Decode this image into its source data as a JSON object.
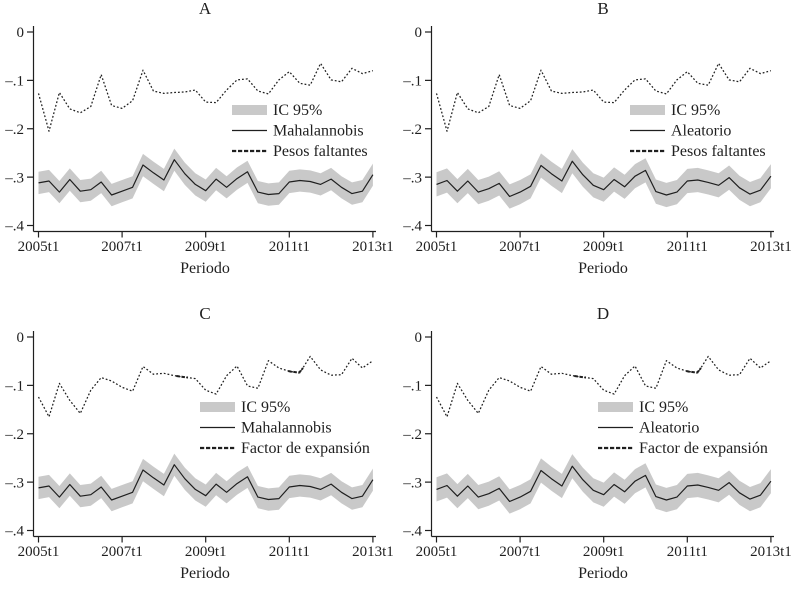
{
  "figure": {
    "description": "Cuatro paneles (A, B, C, D) de series trimestrales con banda de confianza",
    "background": "#ffffff"
  },
  "chart_data": {
    "type": "line",
    "x": {
      "label": "Periodo",
      "start": "2005t1",
      "end": "2013t1",
      "n_points": 33,
      "frequency": "quarterly",
      "tick_labels": [
        "2005t1",
        "2007t1",
        "2009t1",
        "2011t1",
        "2013t1"
      ],
      "tick_quarters": [
        0,
        8,
        16,
        24,
        32
      ]
    },
    "y": {
      "tick_labels": [
        "0",
        "–.1",
        "–.2",
        "–.3",
        "–.4"
      ],
      "tick_values": [
        0,
        -0.1,
        -0.2,
        -0.3,
        -0.4
      ],
      "ylim": [
        -0.4,
        0
      ],
      "grid": false
    },
    "series_values": {
      "mahalannobis": [
        -0.312,
        -0.308,
        -0.331,
        -0.305,
        -0.329,
        -0.326,
        -0.31,
        -0.337,
        -0.329,
        -0.321,
        -0.275,
        -0.291,
        -0.306,
        -0.264,
        -0.293,
        -0.315,
        -0.328,
        -0.304,
        -0.321,
        -0.303,
        -0.289,
        -0.331,
        -0.336,
        -0.334,
        -0.31,
        -0.307,
        -0.309,
        -0.315,
        -0.304,
        -0.321,
        -0.334,
        -0.329,
        -0.295
      ],
      "aleatorio": [
        -0.315,
        -0.307,
        -0.329,
        -0.308,
        -0.331,
        -0.324,
        -0.313,
        -0.34,
        -0.331,
        -0.319,
        -0.276,
        -0.293,
        -0.308,
        -0.267,
        -0.295,
        -0.317,
        -0.326,
        -0.305,
        -0.32,
        -0.298,
        -0.286,
        -0.33,
        -0.337,
        -0.331,
        -0.308,
        -0.306,
        -0.311,
        -0.317,
        -0.301,
        -0.322,
        -0.335,
        -0.327,
        -0.298
      ],
      "pesos_faltantes": [
        -0.127,
        -0.205,
        -0.125,
        -0.159,
        -0.167,
        -0.154,
        -0.088,
        -0.152,
        -0.158,
        -0.142,
        -0.079,
        -0.122,
        -0.127,
        -0.125,
        -0.124,
        -0.12,
        -0.145,
        -0.146,
        -0.12,
        -0.099,
        -0.097,
        -0.122,
        -0.128,
        -0.099,
        -0.082,
        -0.106,
        -0.11,
        -0.065,
        -0.099,
        -0.103,
        -0.075,
        -0.086,
        -0.08
      ],
      "factor_expansion": [
        -0.124,
        -0.165,
        -0.096,
        -0.131,
        -0.158,
        -0.11,
        -0.084,
        -0.091,
        -0.104,
        -0.112,
        -0.061,
        -0.077,
        -0.075,
        -0.08,
        -0.083,
        -0.086,
        -0.11,
        -0.118,
        -0.08,
        -0.06,
        -0.101,
        -0.106,
        -0.049,
        -0.064,
        -0.071,
        -0.074,
        -0.04,
        -0.068,
        -0.079,
        -0.078,
        -0.044,
        -0.064,
        -0.049
      ]
    },
    "ci_halfwidth": {
      "mahalannobis": 0.023,
      "aleatorio": 0.025
    },
    "bold_dash_segments": {
      "pesos_faltantes": [],
      "factor_expansion": [
        [
          13.2,
          14.3
        ],
        [
          23.9,
          25.3
        ]
      ]
    },
    "panels": [
      {
        "title": "A",
        "solid_series": "mahalannobis",
        "dotted_series": "pesos_faltantes",
        "legend": {
          "band_label": "IC 95%",
          "solid_label": "Mahalannobis",
          "dotted_label": "Pesos faltantes",
          "pos": [
            232,
            110
          ],
          "position": "inside middle-right"
        },
        "xlabel": "Periodo"
      },
      {
        "title": "B",
        "solid_series": "aleatorio",
        "dotted_series": "pesos_faltantes",
        "legend": {
          "band_label": "IC 95%",
          "solid_label": "Aleatorio",
          "dotted_label": "Pesos faltantes",
          "pos": [
            232,
            110
          ],
          "position": "inside middle-right"
        },
        "xlabel": "Periodo"
      },
      {
        "title": "C",
        "solid_series": "mahalannobis",
        "dotted_series": "factor_expansion",
        "legend": {
          "band_label": "IC 95%",
          "solid_label": "Mahalannobis",
          "dotted_label": "Factor de expansión",
          "pos": [
            200,
            102
          ],
          "position": "inside middle-right"
        },
        "xlabel": "Periodo"
      },
      {
        "title": "D",
        "solid_series": "aleatorio",
        "dotted_series": "factor_expansion",
        "legend": {
          "band_label": "IC 95%",
          "solid_label": "Aleatorio",
          "dotted_label": "Factor de expansión",
          "pos": [
            200,
            102
          ],
          "position": "inside middle-right"
        },
        "xlabel": "Periodo"
      }
    ],
    "colors": {
      "line": "#1f1f1f",
      "band": "#c9c9c9",
      "text": "#1f1f1f",
      "background": "#ffffff"
    }
  }
}
